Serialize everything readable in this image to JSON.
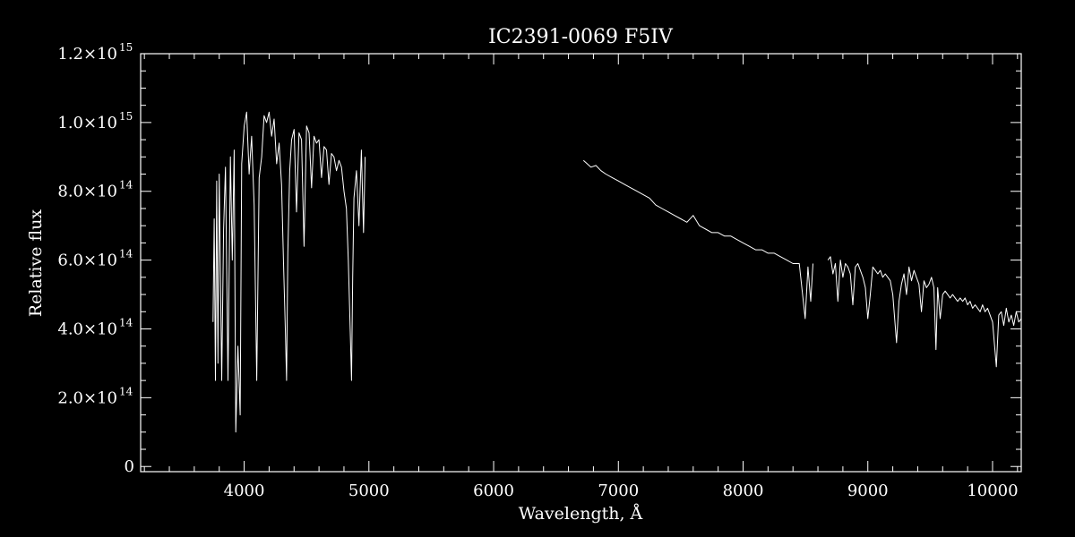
{
  "colors": {
    "background": "#000000",
    "foreground": "#ffffff"
  },
  "chart_data": {
    "type": "line",
    "title": "IC2391-0069   F5IV",
    "xlabel": "Wavelength, Å",
    "ylabel": "Relative flux",
    "xlim": [
      3170,
      10230
    ],
    "ylim": [
      -15000000000000.0,
      1200000000000000.0
    ],
    "grid": false,
    "legend": "none",
    "x_ticks": [
      {
        "value": 4000,
        "label": "4000"
      },
      {
        "value": 5000,
        "label": "5000"
      },
      {
        "value": 6000,
        "label": "6000"
      },
      {
        "value": 7000,
        "label": "7000"
      },
      {
        "value": 8000,
        "label": "8000"
      },
      {
        "value": 9000,
        "label": "9000"
      },
      {
        "value": 10000,
        "label": "10000"
      }
    ],
    "y_ticks": [
      {
        "value": 0,
        "label": "0",
        "exp": ""
      },
      {
        "value": 200000000000000.0,
        "label": "2.0×10",
        "exp": "14"
      },
      {
        "value": 400000000000000.0,
        "label": "4.0×10",
        "exp": "14"
      },
      {
        "value": 600000000000000.0,
        "label": "6.0×10",
        "exp": "14"
      },
      {
        "value": 800000000000000.0,
        "label": "8.0×10",
        "exp": "14"
      },
      {
        "value": 1000000000000000.0,
        "label": "1.0×10",
        "exp": "15"
      },
      {
        "value": 1200000000000000.0,
        "label": "1.2×10",
        "exp": "15"
      }
    ],
    "series": [
      {
        "segment": "blue",
        "x": [
          3750,
          3760,
          3770,
          3780,
          3790,
          3800,
          3820,
          3835,
          3850,
          3870,
          3890,
          3905,
          3920,
          3933,
          3950,
          3968,
          3980,
          4000,
          4020,
          4040,
          4060,
          4080,
          4101,
          4120,
          4140,
          4160,
          4180,
          4200,
          4220,
          4240,
          4260,
          4280,
          4300,
          4315,
          4330,
          4340,
          4350,
          4365,
          4380,
          4400,
          4420,
          4440,
          4460,
          4480,
          4500,
          4520,
          4540,
          4560,
          4580,
          4600,
          4620,
          4640,
          4660,
          4680,
          4700,
          4720,
          4740,
          4760,
          4780,
          4800,
          4820,
          4835,
          4850,
          4861,
          4870,
          4880,
          4900,
          4920,
          4940,
          4957,
          4970
        ],
        "y": [
          420000000000000.0,
          720000000000000.0,
          250000000000000.0,
          830000000000000.0,
          300000000000000.0,
          850000000000000.0,
          250000000000000.0,
          690000000000000.0,
          870000000000000.0,
          250000000000000.0,
          900000000000000.0,
          600000000000000.0,
          920000000000000.0,
          100000000000000.0,
          350000000000000.0,
          150000000000000.0,
          880000000000000.0,
          990000000000000.0,
          1030000000000000.0,
          850000000000000.0,
          960000000000000.0,
          760000000000000.0,
          250000000000000.0,
          840000000000000.0,
          900000000000000.0,
          1020000000000000.0,
          1000000000000000.0,
          1030000000000000.0,
          960000000000000.0,
          1010000000000000.0,
          880000000000000.0,
          940000000000000.0,
          820000000000000.0,
          600000000000000.0,
          400000000000000.0,
          250000000000000.0,
          620000000000000.0,
          860000000000000.0,
          950000000000000.0,
          980000000000000.0,
          740000000000000.0,
          970000000000000.0,
          950000000000000.0,
          640000000000000.0,
          990000000000000.0,
          970000000000000.0,
          810000000000000.0,
          960000000000000.0,
          940000000000000.0,
          950000000000000.0,
          840000000000000.0,
          930000000000000.0,
          920000000000000.0,
          820000000000000.0,
          910000000000000.0,
          900000000000000.0,
          860000000000000.0,
          890000000000000.0,
          870000000000000.0,
          800000000000000.0,
          750000000000000.0,
          600000000000000.0,
          400000000000000.0,
          250000000000000.0,
          550000000000000.0,
          780000000000000.0,
          860000000000000.0,
          700000000000000.0,
          920000000000000.0,
          680000000000000.0,
          900000000000000.0
        ]
      },
      {
        "segment": "red",
        "x": [
          6720,
          6750,
          6780,
          6820,
          6860,
          6900,
          6950,
          7000,
          7050,
          7100,
          7150,
          7200,
          7250,
          7300,
          7350,
          7400,
          7450,
          7500,
          7550,
          7600,
          7650,
          7700,
          7750,
          7800,
          7850,
          7900,
          7950,
          8000,
          8050,
          8100,
          8150,
          8200,
          8250,
          8300,
          8350,
          8400,
          8450,
          8498,
          8520,
          8542,
          8560
        ],
        "y": [
          890000000000000.0,
          880000000000000.0,
          870000000000000.0,
          875000000000000.0,
          860000000000000.0,
          850000000000000.0,
          840000000000000.0,
          830000000000000.0,
          820000000000000.0,
          810000000000000.0,
          800000000000000.0,
          790000000000000.0,
          780000000000000.0,
          760000000000000.0,
          750000000000000.0,
          740000000000000.0,
          730000000000000.0,
          720000000000000.0,
          710000000000000.0,
          730000000000000.0,
          700000000000000.0,
          690000000000000.0,
          680000000000000.0,
          680000000000000.0,
          670000000000000.0,
          670000000000000.0,
          660000000000000.0,
          650000000000000.0,
          640000000000000.0,
          630000000000000.0,
          630000000000000.0,
          620000000000000.0,
          620000000000000.0,
          610000000000000.0,
          600000000000000.0,
          590000000000000.0,
          590000000000000.0,
          430000000000000.0,
          580000000000000.0,
          480000000000000.0,
          590000000000000.0
        ]
      },
      {
        "segment": "near-ir",
        "x": [
          8680,
          8700,
          8720,
          8740,
          8760,
          8780,
          8800,
          8820,
          8840,
          8860,
          8880,
          8900,
          8920,
          8940,
          8960,
          8980,
          9000,
          9020,
          9040,
          9060,
          9080,
          9100,
          9120,
          9140,
          9160,
          9180,
          9200,
          9230,
          9250,
          9270,
          9290,
          9310,
          9330,
          9350,
          9370,
          9390,
          9410,
          9430,
          9450,
          9470,
          9490,
          9510,
          9530,
          9546,
          9560,
          9580,
          9600,
          9620,
          9640,
          9660,
          9680,
          9700,
          9720,
          9740,
          9760,
          9780,
          9800,
          9820,
          9840,
          9860,
          9880,
          9900,
          9920,
          9940,
          9960,
          9980,
          10000,
          10030,
          10050,
          10070,
          10090,
          10110,
          10130,
          10150,
          10170,
          10190,
          10210,
          10230
        ],
        "y": [
          600000000000000.0,
          610000000000000.0,
          560000000000000.0,
          590000000000000.0,
          480000000000000.0,
          600000000000000.0,
          550000000000000.0,
          590000000000000.0,
          580000000000000.0,
          560000000000000.0,
          470000000000000.0,
          580000000000000.0,
          590000000000000.0,
          570000000000000.0,
          550000000000000.0,
          520000000000000.0,
          430000000000000.0,
          500000000000000.0,
          580000000000000.0,
          570000000000000.0,
          560000000000000.0,
          570000000000000.0,
          550000000000000.0,
          560000000000000.0,
          550000000000000.0,
          540000000000000.0,
          500000000000000.0,
          360000000000000.0,
          480000000000000.0,
          530000000000000.0,
          560000000000000.0,
          500000000000000.0,
          580000000000000.0,
          540000000000000.0,
          570000000000000.0,
          550000000000000.0,
          530000000000000.0,
          450000000000000.0,
          540000000000000.0,
          520000000000000.0,
          530000000000000.0,
          550000000000000.0,
          520000000000000.0,
          340000000000000.0,
          520000000000000.0,
          430000000000000.0,
          500000000000000.0,
          510000000000000.0,
          500000000000000.0,
          490000000000000.0,
          500000000000000.0,
          490000000000000.0,
          480000000000000.0,
          490000000000000.0,
          480000000000000.0,
          490000000000000.0,
          470000000000000.0,
          480000000000000.0,
          460000000000000.0,
          470000000000000.0,
          460000000000000.0,
          450000000000000.0,
          470000000000000.0,
          450000000000000.0,
          460000000000000.0,
          440000000000000.0,
          420000000000000.0,
          290000000000000.0,
          440000000000000.0,
          450000000000000.0,
          410000000000000.0,
          460000000000000.0,
          420000000000000.0,
          440000000000000.0,
          410000000000000.0,
          450000000000000.0,
          420000000000000.0,
          430000000000000.0
        ]
      }
    ]
  }
}
